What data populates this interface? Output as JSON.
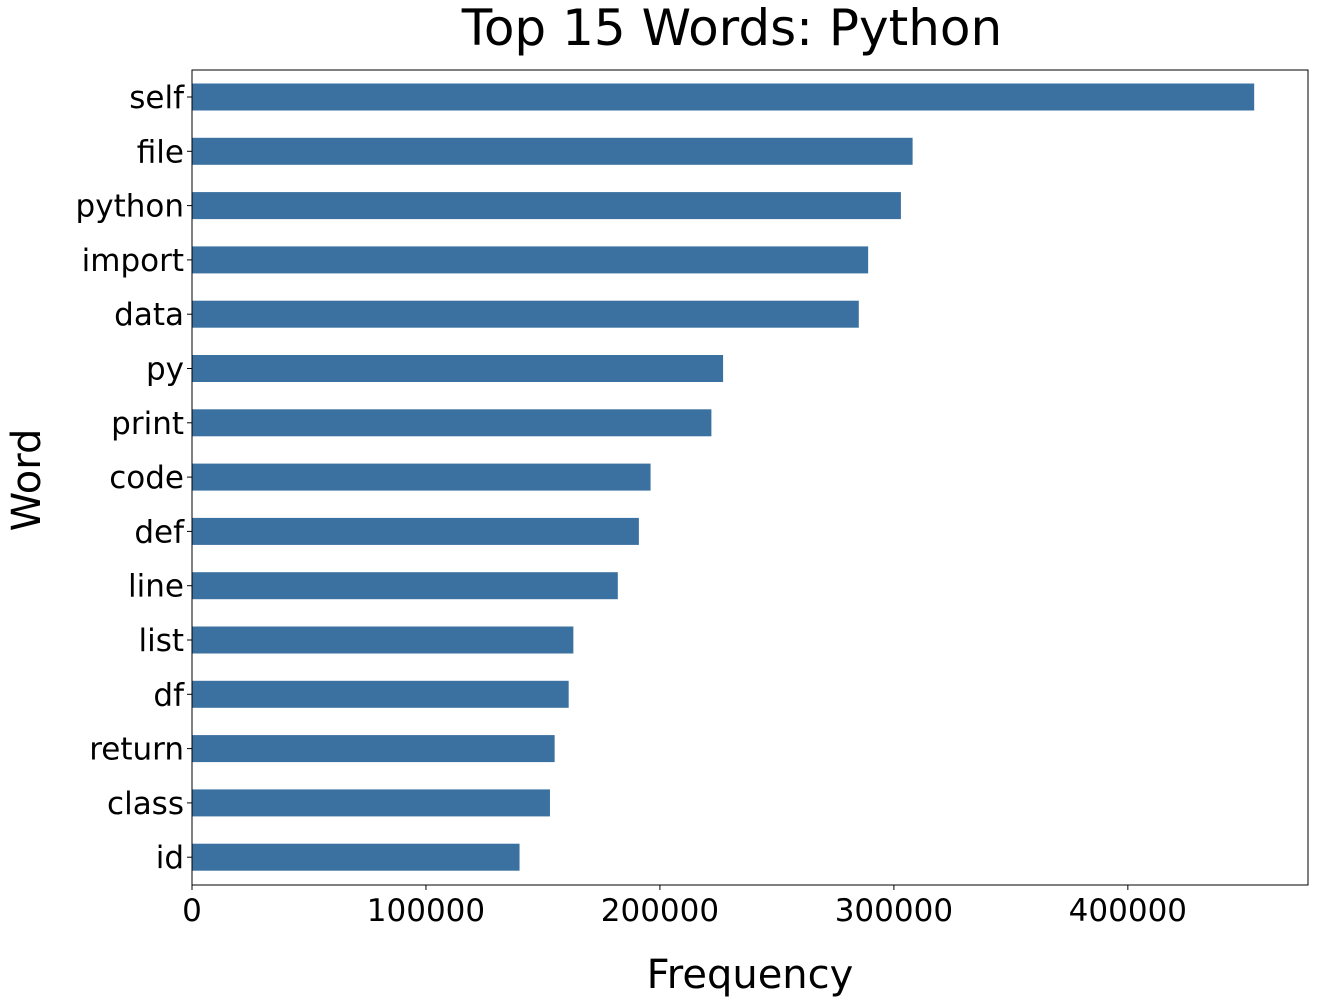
{
  "chart_data": {
    "type": "bar",
    "orientation": "horizontal",
    "title": "Top 15 Words: Python",
    "xlabel": "Frequency",
    "ylabel": "Word",
    "categories": [
      "self",
      "file",
      "python",
      "import",
      "data",
      "py",
      "print",
      "code",
      "def",
      "line",
      "list",
      "df",
      "return",
      "class",
      "id"
    ],
    "values": [
      454000,
      308000,
      303000,
      289000,
      285000,
      227000,
      222000,
      196000,
      191000,
      182000,
      163000,
      161000,
      155000,
      153000,
      140000
    ],
    "xlim": [
      0,
      477000
    ],
    "xticks": [
      0,
      100000,
      200000,
      300000,
      400000
    ],
    "xtick_labels": [
      "0",
      "100000",
      "200000",
      "300000",
      "400000"
    ],
    "grid": false,
    "legend": "none",
    "bar_color": "#3a71a0"
  }
}
